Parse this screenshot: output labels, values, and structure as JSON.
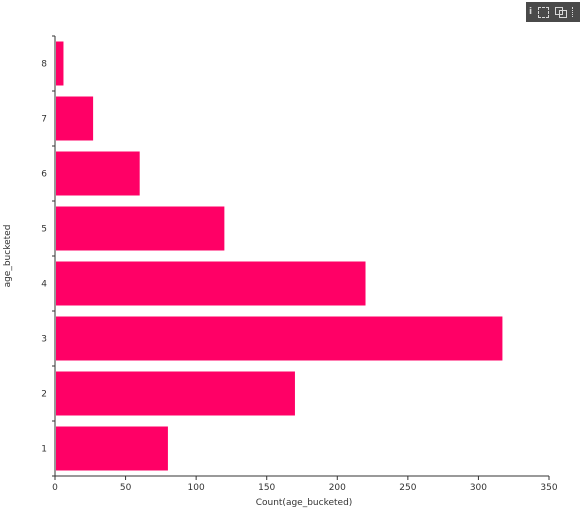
{
  "toolbar": {
    "icons": [
      "info-icon",
      "focus-mode-icon",
      "copy-icon",
      "more-options-icon"
    ]
  },
  "chart_data": {
    "type": "bar",
    "orientation": "horizontal",
    "categories": [
      "1",
      "2",
      "3",
      "4",
      "5",
      "6",
      "7",
      "8"
    ],
    "values": [
      80,
      170,
      317,
      220,
      120,
      60,
      27,
      6
    ],
    "xlabel": "Count(age_bucketed)",
    "ylabel": "age_bucketed",
    "xlim": [
      0,
      350
    ],
    "xticks": [
      "0",
      "50",
      "100",
      "150",
      "200",
      "250",
      "300",
      "350"
    ],
    "bar_color": "#ff0066",
    "grid": false
  }
}
